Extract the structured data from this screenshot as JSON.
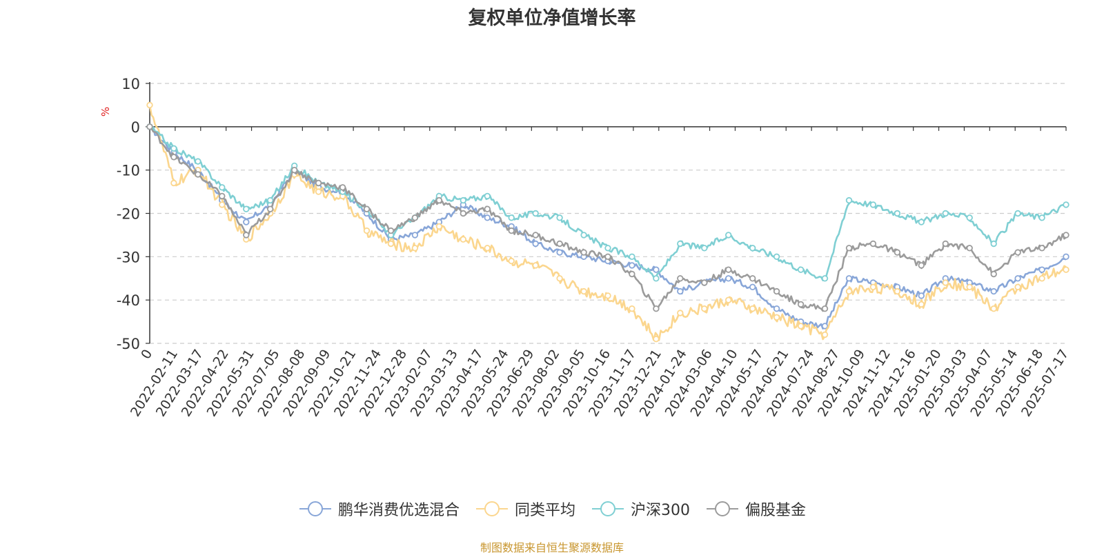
{
  "chart_data": {
    "type": "line",
    "title": "复权单位净值增长率",
    "ylabel": "%",
    "ylim": [
      -50,
      10
    ],
    "yticks": [
      10,
      0,
      -10,
      -20,
      -30,
      -40,
      -50
    ],
    "grid": true,
    "legend_position": "bottom",
    "x_tick_labels": [
      "0",
      "2022-02-11",
      "2022-03-17",
      "2022-04-22",
      "2022-05-31",
      "2022-07-05",
      "2022-08-08",
      "2022-09-09",
      "2022-10-21",
      "2022-11-24",
      "2022-12-28",
      "2023-02-07",
      "2023-03-13",
      "2023-04-17",
      "2023-05-24",
      "2023-06-29",
      "2023-08-02",
      "2023-09-05",
      "2023-10-16",
      "2023-11-17",
      "2023-12-21",
      "2024-01-24",
      "2024-03-06",
      "2024-04-10",
      "2024-05-17",
      "2024-06-21",
      "2024-07-24",
      "2024-08-27",
      "2024-10-09",
      "2024-11-12",
      "2024-12-16",
      "2025-01-20",
      "2025-03-03",
      "2025-04-07",
      "2025-05-14",
      "2025-06-18",
      "2025-07-17"
    ],
    "series": [
      {
        "name": "鹏华消费优选混合",
        "color": "#88a6d8",
        "values": [
          0,
          -6,
          -10,
          -17,
          -22,
          -18,
          -10,
          -14,
          -15,
          -20,
          -26,
          -25,
          -22,
          -18,
          -21,
          -23,
          -27,
          -29,
          -30,
          -31,
          -32,
          -33,
          -38,
          -36,
          -35,
          -37,
          -42,
          -45,
          -46,
          -35,
          -36,
          -37,
          -39,
          -35,
          -36,
          -38,
          -35,
          -33,
          -30
        ]
      },
      {
        "name": "同类平均",
        "color": "#fbd68e",
        "values": [
          5,
          -13,
          -10,
          -18,
          -26,
          -20,
          -11,
          -15,
          -16,
          -24,
          -27,
          -28,
          -23,
          -26,
          -28,
          -31,
          -32,
          -35,
          -38,
          -39,
          -42,
          -49,
          -43,
          -42,
          -40,
          -42,
          -44,
          -46,
          -48,
          -38,
          -37,
          -38,
          -41,
          -36,
          -37,
          -42,
          -37,
          -35,
          -33
        ]
      },
      {
        "name": "沪深300",
        "color": "#7fcfd3",
        "values": [
          0,
          -5,
          -8,
          -14,
          -19,
          -17,
          -9,
          -13,
          -15,
          -19,
          -25,
          -21,
          -16,
          -17,
          -16,
          -21,
          -20,
          -21,
          -25,
          -28,
          -30,
          -35,
          -27,
          -28,
          -25,
          -28,
          -30,
          -33,
          -35,
          -17,
          -18,
          -20,
          -22,
          -20,
          -21,
          -27,
          -20,
          -21,
          -18
        ]
      },
      {
        "name": "偏股基金",
        "color": "#9b9b9b",
        "values": [
          0,
          -7,
          -11,
          -16,
          -25,
          -19,
          -10,
          -13,
          -14,
          -19,
          -24,
          -21,
          -17,
          -20,
          -19,
          -24,
          -25,
          -27,
          -29,
          -30,
          -34,
          -42,
          -35,
          -36,
          -33,
          -35,
          -38,
          -41,
          -42,
          -28,
          -27,
          -29,
          -32,
          -27,
          -28,
          -34,
          -29,
          -28,
          -25
        ]
      }
    ]
  },
  "source_note": "制图数据来自恒生聚源数据库"
}
